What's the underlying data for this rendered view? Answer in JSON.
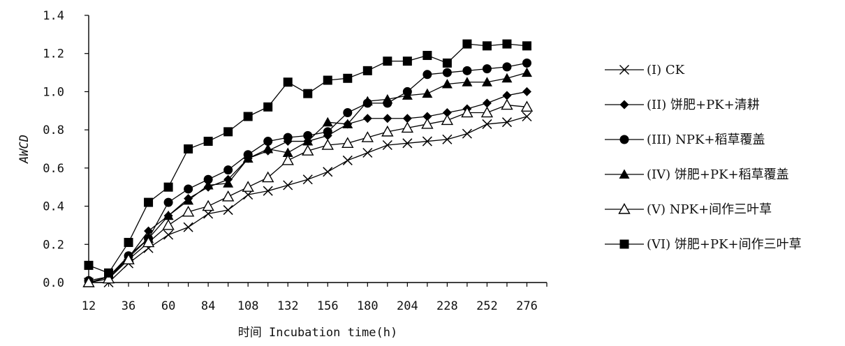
{
  "chart_data": {
    "type": "line",
    "title": "",
    "xlabel": "时间 Incubation time(h)",
    "ylabel": "AWCD",
    "xlim": [
      12,
      288
    ],
    "ylim": [
      0.0,
      1.4
    ],
    "xticks": [
      12,
      36,
      60,
      84,
      108,
      132,
      156,
      180,
      204,
      228,
      252,
      276
    ],
    "yticks": [
      0.0,
      0.2,
      0.4,
      0.6,
      0.8,
      1.0,
      1.2,
      1.4
    ],
    "ytick_labels": [
      "0.0",
      "0.2",
      "0.4",
      "0.6",
      "0.8",
      "1.0",
      "1.2",
      "1.4"
    ],
    "grid": false,
    "legend_position": "right",
    "x": [
      12,
      24,
      36,
      48,
      60,
      72,
      84,
      96,
      108,
      120,
      132,
      144,
      156,
      168,
      180,
      192,
      204,
      216,
      228,
      240,
      252,
      264,
      276
    ],
    "series": [
      {
        "name": "(I) CK",
        "marker": "x",
        "values": [
          0.0,
          0.0,
          0.1,
          0.18,
          0.25,
          0.29,
          0.36,
          0.38,
          0.46,
          0.48,
          0.51,
          0.54,
          0.58,
          0.64,
          0.68,
          0.72,
          0.73,
          0.74,
          0.75,
          0.78,
          0.83,
          0.84,
          0.87
        ]
      },
      {
        "name": "(II)  饼肥+PK+清耕",
        "marker": "diamond",
        "values": [
          0.0,
          0.03,
          0.13,
          0.27,
          0.35,
          0.44,
          0.5,
          0.54,
          0.65,
          0.69,
          0.74,
          0.74,
          0.77,
          0.83,
          0.86,
          0.86,
          0.86,
          0.87,
          0.89,
          0.91,
          0.94,
          0.98,
          1.0
        ]
      },
      {
        "name": "(III) NPK+稻草覆盖",
        "marker": "circle",
        "values": [
          0.01,
          0.03,
          0.14,
          0.23,
          0.42,
          0.49,
          0.54,
          0.59,
          0.67,
          0.74,
          0.76,
          0.77,
          0.79,
          0.89,
          0.94,
          0.94,
          1.0,
          1.09,
          1.1,
          1.11,
          1.12,
          1.13,
          1.15
        ]
      },
      {
        "name": "(IV)  饼肥+PK+稻草覆盖",
        "marker": "triangle",
        "values": [
          0.0,
          0.02,
          0.13,
          0.23,
          0.35,
          0.43,
          0.51,
          0.52,
          0.65,
          0.7,
          0.68,
          0.74,
          0.84,
          0.83,
          0.95,
          0.96,
          0.98,
          0.99,
          1.04,
          1.05,
          1.05,
          1.07,
          1.1
        ]
      },
      {
        "name": "(V) NPK+间作三叶草",
        "marker": "triangle-open",
        "values": [
          0.0,
          0.02,
          0.12,
          0.21,
          0.3,
          0.37,
          0.4,
          0.45,
          0.5,
          0.55,
          0.64,
          0.69,
          0.72,
          0.73,
          0.76,
          0.79,
          0.81,
          0.83,
          0.85,
          0.89,
          0.89,
          0.93,
          0.92
        ]
      },
      {
        "name": "(VI)  饼肥+PK+间作三叶草",
        "marker": "square",
        "values": [
          0.09,
          0.05,
          0.21,
          0.42,
          0.5,
          0.7,
          0.74,
          0.79,
          0.87,
          0.92,
          1.05,
          0.99,
          1.06,
          1.07,
          1.11,
          1.16,
          1.16,
          1.19,
          1.15,
          1.25,
          1.24,
          1.25,
          1.24
        ]
      }
    ]
  }
}
